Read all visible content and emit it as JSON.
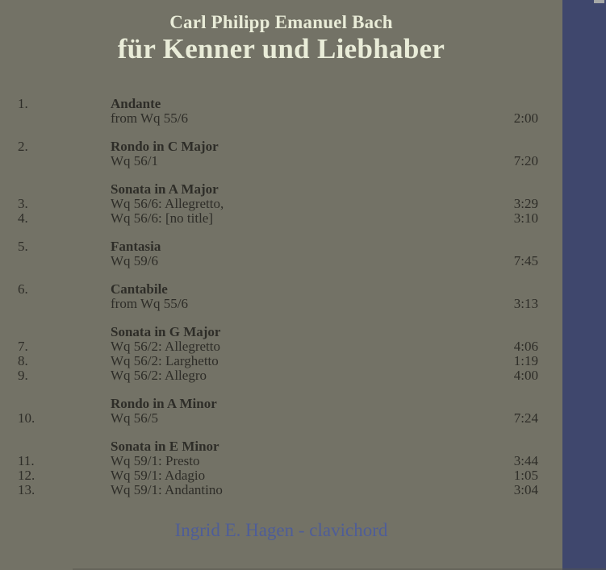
{
  "header": {
    "composer": "Carl Philipp Emanuel Bach",
    "title": "für Kenner und Liebhaber"
  },
  "tracks": {
    "groups": [
      {
        "lines": [
          {
            "num": "1.",
            "text": "Andante",
            "bold": true
          },
          {
            "text": "from Wq 55/6",
            "dur": "2:00"
          }
        ]
      },
      {
        "lines": [
          {
            "num": "2.",
            "text": "Rondo in C Major",
            "bold": true
          },
          {
            "text": "Wq 56/1",
            "dur": "7:20"
          }
        ]
      },
      {
        "lines": [
          {
            "text": "Sonata in A Major",
            "bold": true
          },
          {
            "num": "3.",
            "text": "Wq 56/6: Allegretto,",
            "dur": "3:29"
          },
          {
            "num": "4.",
            "text": "Wq 56/6: [no title]",
            "dur": "3:10"
          }
        ]
      },
      {
        "lines": [
          {
            "num": "5.",
            "text": "Fantasia",
            "bold": true
          },
          {
            "text": "Wq 59/6",
            "dur": "7:45"
          }
        ]
      },
      {
        "lines": [
          {
            "num": "6.",
            "text": "Cantabile",
            "bold": true
          },
          {
            "text": "from Wq 55/6",
            "dur": "3:13"
          }
        ]
      },
      {
        "lines": [
          {
            "text": "Sonata in G Major",
            "bold": true
          },
          {
            "num": "7.",
            "text": "Wq 56/2: Allegretto",
            "dur": "4:06"
          },
          {
            "num": "8.",
            "text": "Wq 56/2: Larghetto",
            "dur": "1:19"
          },
          {
            "num": "9.",
            "text": "Wq 56/2: Allegro",
            "dur": "4:00"
          }
        ]
      },
      {
        "lines": [
          {
            "text": "Rondo in A Minor",
            "bold": true
          },
          {
            "num": "10.",
            "text": "Wq 56/5",
            "dur": "7:24"
          }
        ]
      },
      {
        "lines": [
          {
            "text": "Sonata in E Minor",
            "bold": true
          },
          {
            "num": "11.",
            "text": "Wq 59/1: Presto",
            "dur": "3:44"
          },
          {
            "num": "12.",
            "text": "Wq 59/1: Adagio",
            "dur": "1:05"
          },
          {
            "num": "13.",
            "text": "Wq 59/1: Andantino",
            "dur": "3:04"
          }
        ]
      }
    ]
  },
  "footer": {
    "credit": "Ingrid E. Hagen - clavichord"
  },
  "colors": {
    "background": "#737266",
    "right_border": "#3f476d",
    "title_text": "#e9ecd8",
    "track_text": "#2e2d28",
    "credit_text": "#4e5d98"
  }
}
